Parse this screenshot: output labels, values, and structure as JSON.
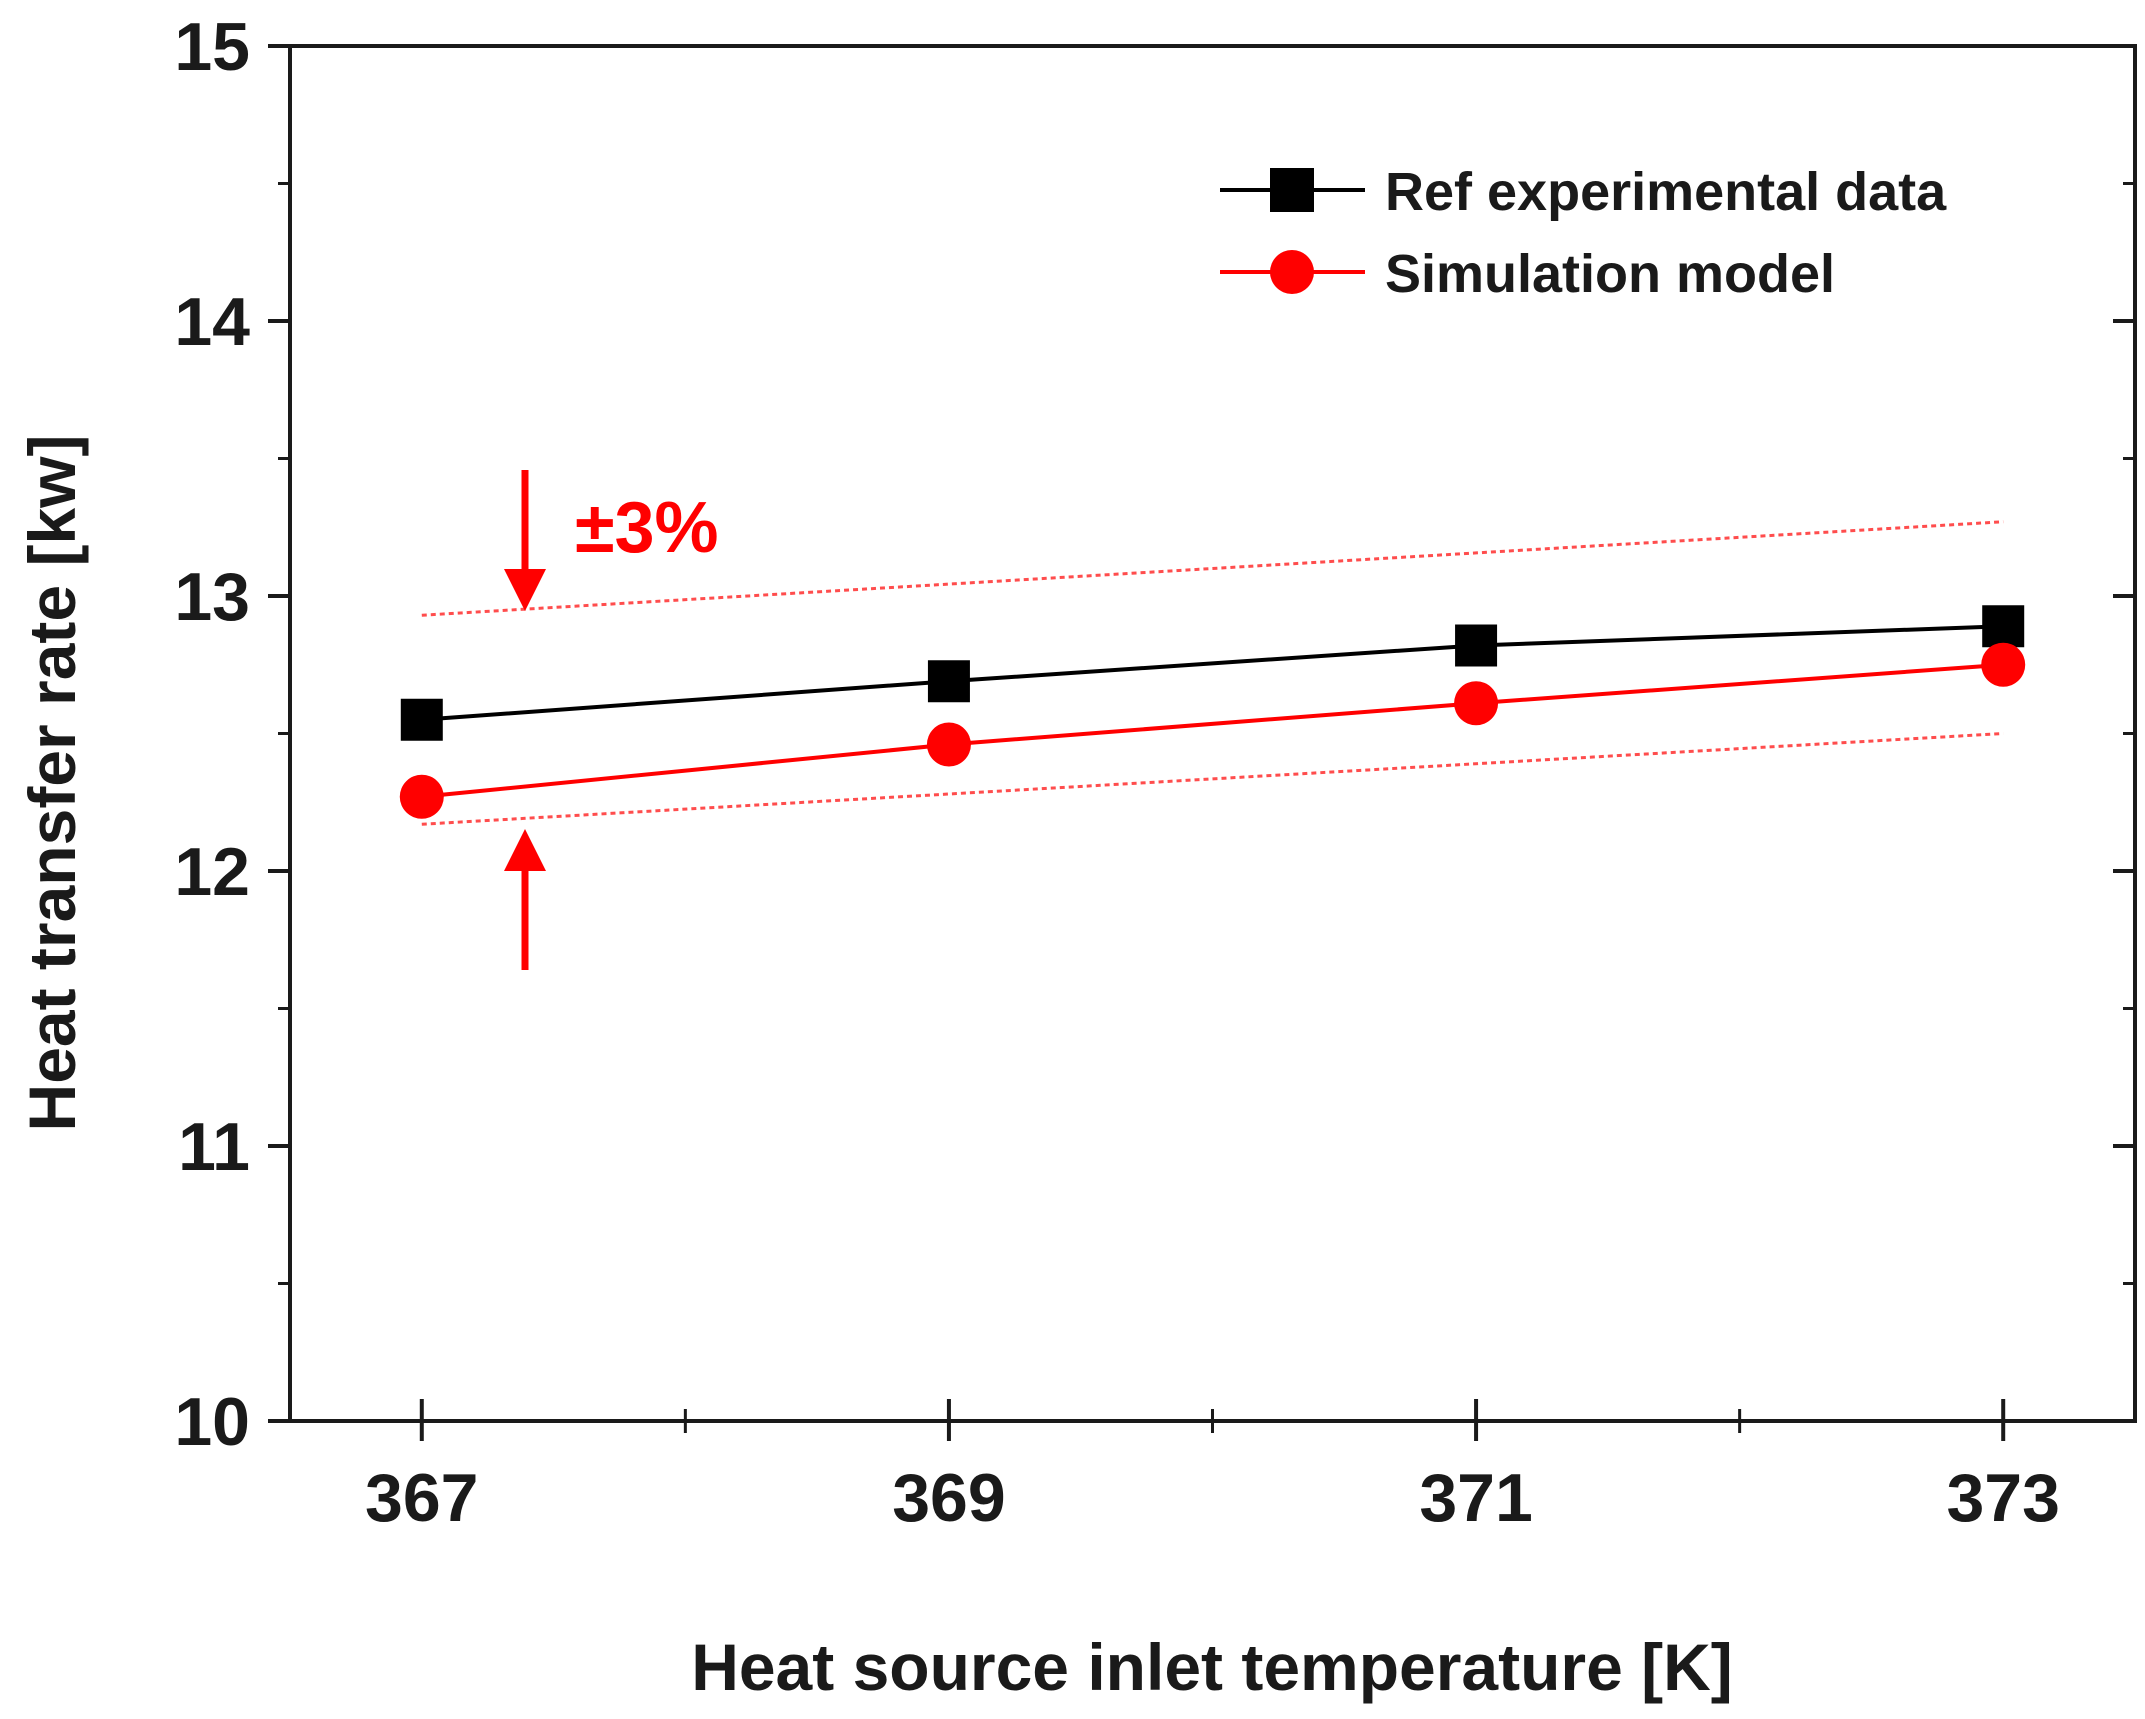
{
  "chart_data": {
    "type": "line",
    "xlabel": "Heat source inlet temperature [K]",
    "ylabel": "Heat transfer rate [kw]",
    "xlim": [
      366.5,
      373.5
    ],
    "ylim": [
      10,
      15
    ],
    "x_ticks": [
      367,
      369,
      371,
      373
    ],
    "x_tick_labels": [
      "367",
      "369",
      "371",
      "373"
    ],
    "y_ticks": [
      10,
      11,
      12,
      13,
      14,
      15
    ],
    "y_tick_labels": [
      "10",
      "11",
      "12",
      "13",
      "14",
      "15"
    ],
    "legend_position": "top-right",
    "series": [
      {
        "name": "Ref experimental data",
        "marker": "square",
        "color": "#000000",
        "x": [
          367,
          369,
          371,
          373
        ],
        "y": [
          12.55,
          12.69,
          12.82,
          12.89
        ]
      },
      {
        "name": "Simulation model",
        "marker": "circle",
        "color": "#ff0000",
        "x": [
          367,
          369,
          371,
          373
        ],
        "y": [
          12.27,
          12.46,
          12.61,
          12.75
        ]
      }
    ],
    "error_band": {
      "color": "#ff4d4d",
      "x": [
        367,
        373
      ],
      "upper": [
        12.93,
        13.27
      ],
      "lower": [
        12.17,
        12.5
      ]
    },
    "annotation": {
      "text": "±3%",
      "color": "#ff0000"
    }
  }
}
